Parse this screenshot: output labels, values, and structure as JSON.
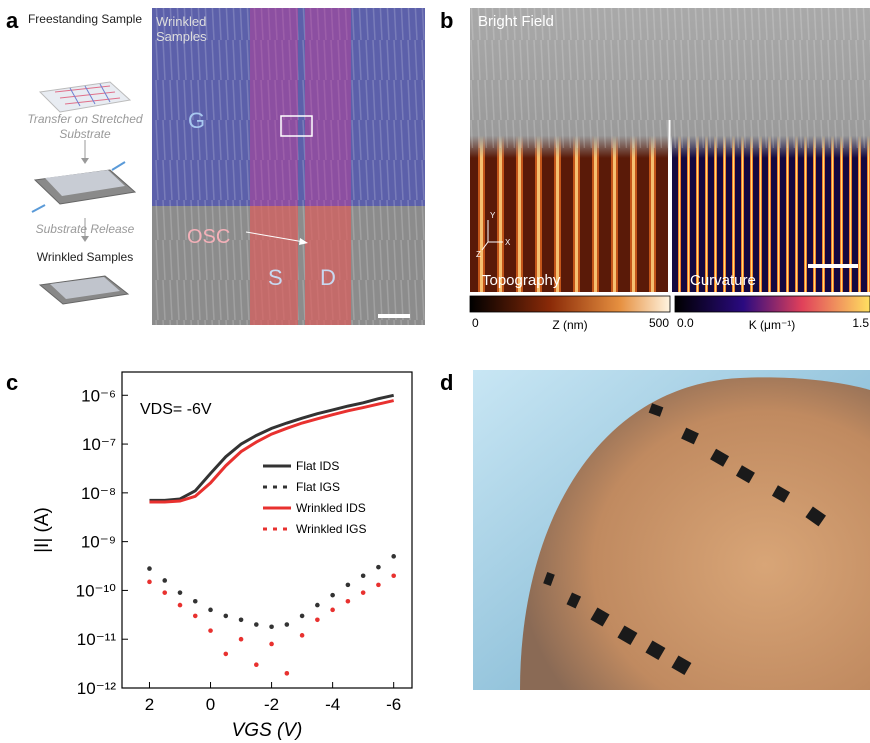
{
  "panel_a": {
    "label": "a",
    "steps": [
      "Freestanding Sample",
      "Transfer on Stretched Substrate",
      "Substrate Release",
      "Wrinkled Samples"
    ],
    "image_labels": [
      "Wrinkled Samples",
      "G",
      "OSC",
      "S",
      "D"
    ]
  },
  "panel_b": {
    "label": "b",
    "image_labels": [
      "Bright Field",
      "Topography",
      "Curvature"
    ],
    "axis_labels": [
      "Y",
      "X",
      "Z"
    ],
    "colorbars": [
      {
        "min_label": "0",
        "title": "Z (nm)",
        "max_label": "500"
      },
      {
        "min_label": "0.0",
        "title": "K (μm⁻¹)",
        "max_label": "1.5"
      }
    ]
  },
  "chart_data": {
    "type": "line",
    "label": "c",
    "annotation": "VDS= -6V",
    "x_label": "VGS (V)",
    "y_label": "|I| (A)",
    "x": [
      2,
      1.5,
      1,
      0.5,
      0,
      -0.5,
      -1,
      -1.5,
      -2,
      -2.5,
      -3,
      -3.5,
      -4,
      -4.5,
      -5,
      -5.5,
      -6
    ],
    "series": [
      {
        "name": "Flat IDS",
        "color": "#333333",
        "style": "line",
        "values": [
          7e-09,
          7e-09,
          7.5e-09,
          1.1e-08,
          2.5e-08,
          5.5e-08,
          1e-07,
          1.5e-07,
          2.1e-07,
          2.7e-07,
          3.4e-07,
          4.2e-07,
          5e-07,
          6e-07,
          7e-07,
          8.5e-07,
          1e-06
        ]
      },
      {
        "name": "Flat IGS",
        "color": "#333333",
        "style": "dots",
        "values": [
          2.8e-10,
          1.6e-10,
          9e-11,
          6e-11,
          4e-11,
          3e-11,
          2.5e-11,
          2e-11,
          1.8e-11,
          2e-11,
          3e-11,
          5e-11,
          8e-11,
          1.3e-10,
          2e-10,
          3e-10,
          5e-10
        ]
      },
      {
        "name": "Wrinkled IDS",
        "color": "#e8312f",
        "style": "line",
        "values": [
          6.5e-09,
          6.5e-09,
          6.8e-09,
          8.5e-09,
          1.6e-08,
          3.6e-08,
          7e-08,
          1.1e-07,
          1.6e-07,
          2.1e-07,
          2.7e-07,
          3.3e-07,
          4e-07,
          4.8e-07,
          5.6e-07,
          6.6e-07,
          7.8e-07
        ]
      },
      {
        "name": "Wrinkled IGS",
        "color": "#e8312f",
        "style": "dots",
        "values": [
          1.5e-10,
          9e-11,
          5e-11,
          3e-11,
          1.5e-11,
          5e-12,
          1e-11,
          3e-12,
          8e-12,
          2e-12,
          1.2e-11,
          2.5e-11,
          4e-11,
          6e-11,
          9e-11,
          1.3e-10,
          2e-10
        ]
      }
    ],
    "xlim": [
      2.9,
      -6.6
    ],
    "xticks": [
      2,
      0,
      -2,
      -4,
      -6
    ],
    "ylim": [
      1e-12,
      3e-06
    ],
    "log_y": true,
    "yticks": [
      {
        "value": 1e-12,
        "label": "10⁻¹²"
      },
      {
        "value": 1e-11,
        "label": "10⁻¹¹"
      },
      {
        "value": 1e-10,
        "label": "10⁻¹⁰"
      },
      {
        "value": 1e-09,
        "label": "10⁻⁹"
      },
      {
        "value": 1e-08,
        "label": "10⁻⁸"
      },
      {
        "value": 1e-07,
        "label": "10⁻⁷"
      },
      {
        "value": 1e-06,
        "label": "10⁻⁶"
      }
    ]
  },
  "panel_d": {
    "label": "d"
  }
}
